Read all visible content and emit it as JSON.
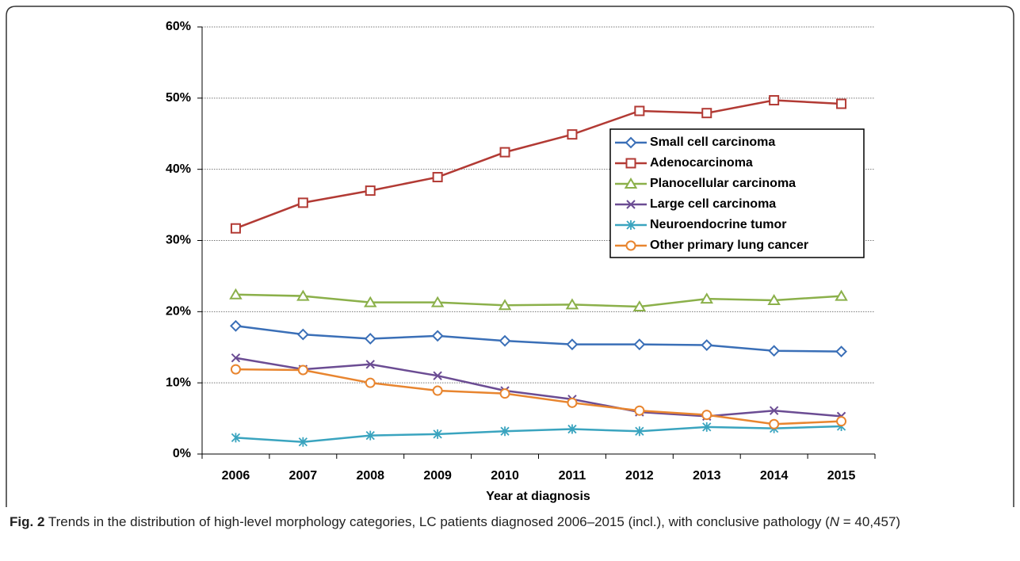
{
  "chart_data": {
    "type": "line",
    "xlabel": "Year at diagnosis",
    "categories": [
      "2006",
      "2007",
      "2008",
      "2009",
      "2010",
      "2011",
      "2012",
      "2013",
      "2014",
      "2015"
    ],
    "series": [
      {
        "name": "Small cell carcinoma",
        "color": "#3a6fb7",
        "marker": "diamond",
        "values": [
          18.0,
          16.8,
          16.2,
          16.6,
          15.9,
          15.4,
          15.4,
          15.3,
          14.5,
          14.4
        ]
      },
      {
        "name": "Adenocarcinoma",
        "color": "#b23a34",
        "marker": "square",
        "values": [
          31.7,
          35.3,
          37.0,
          38.9,
          42.4,
          44.9,
          48.2,
          47.9,
          49.7,
          49.2
        ]
      },
      {
        "name": "Planocellular carcinoma",
        "color": "#8bb04a",
        "marker": "triangle",
        "values": [
          22.4,
          22.2,
          21.3,
          21.3,
          20.9,
          21.0,
          20.7,
          21.8,
          21.6,
          22.2
        ]
      },
      {
        "name": "Large cell carcinoma",
        "color": "#6b4c93",
        "marker": "x",
        "values": [
          13.5,
          11.9,
          12.6,
          11.0,
          8.9,
          7.7,
          5.9,
          5.3,
          6.1,
          5.3
        ]
      },
      {
        "name": "Neuroendocrine tumor",
        "color": "#3aa4bf",
        "marker": "asterisk",
        "values": [
          2.3,
          1.7,
          2.6,
          2.8,
          3.2,
          3.5,
          3.2,
          3.8,
          3.6,
          3.9
        ]
      },
      {
        "name": "Other primary lung cancer",
        "color": "#e8852f",
        "marker": "circle",
        "values": [
          11.9,
          11.8,
          10.0,
          8.9,
          8.5,
          7.2,
          6.1,
          5.5,
          4.2,
          4.6
        ]
      }
    ],
    "ylim": [
      0,
      60
    ],
    "yticks": [
      {
        "value": 0,
        "label": "0%"
      },
      {
        "value": 10,
        "label": "10%"
      },
      {
        "value": 20,
        "label": "20%"
      },
      {
        "value": 30,
        "label": "30%"
      },
      {
        "value": 40,
        "label": "40%"
      },
      {
        "value": 50,
        "label": "50%"
      },
      {
        "value": 60,
        "label": "60%"
      }
    ],
    "grid": true,
    "legend": "upper right"
  },
  "caption": {
    "label": "Fig. 2",
    "text_before": "Trends in the distribution of high-level morphology categories, LC patients diagnosed 2006–2015 (incl.), with conclusive pathology (",
    "italic": "N",
    "text_after": " = 40,457)"
  }
}
